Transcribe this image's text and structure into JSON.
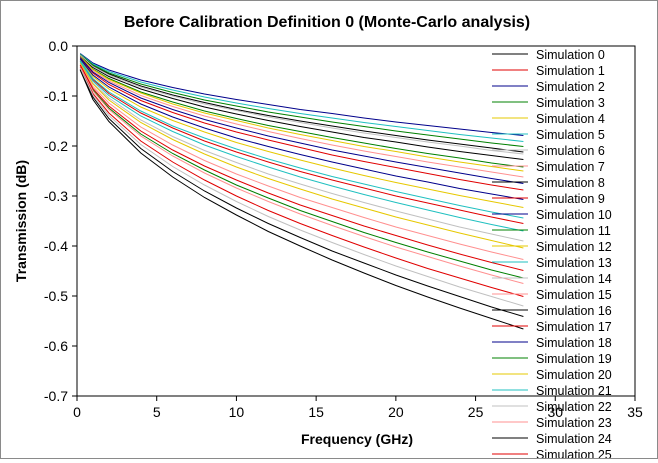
{
  "chart_data": {
    "type": "line",
    "title": "Before Calibration Definition 0 (Monte-Carlo analysis)",
    "xlabel": "Frequency (GHz)",
    "ylabel": "Transmission (dB)",
    "xlim": [
      0,
      35
    ],
    "ylim": [
      -0.7,
      0.0
    ],
    "x_ticks": [
      "0",
      "5",
      "10",
      "15",
      "20",
      "25",
      "30",
      "35"
    ],
    "y_ticks": [
      "0.0",
      "-0.1",
      "-0.2",
      "-0.3",
      "-0.4",
      "-0.5",
      "-0.6",
      "-0.7"
    ],
    "x": [
      0.2,
      1,
      2,
      4,
      6,
      8,
      10,
      12,
      14,
      16,
      18,
      20,
      22,
      24,
      26,
      28
    ],
    "grid": false,
    "legend_position": "right-inside",
    "series": [
      {
        "name": "Simulation 0",
        "color": "#000000",
        "values": [
          -0.018,
          -0.04,
          -0.056,
          -0.08,
          -0.098,
          -0.113,
          -0.127,
          -0.139,
          -0.15,
          -0.16,
          -0.17,
          -0.179,
          -0.188,
          -0.196,
          -0.204,
          -0.212
        ]
      },
      {
        "name": "Simulation 1",
        "color": "#e00000",
        "values": [
          -0.024,
          -0.054,
          -0.077,
          -0.109,
          -0.133,
          -0.154,
          -0.172,
          -0.188,
          -0.203,
          -0.218,
          -0.231,
          -0.243,
          -0.255,
          -0.267,
          -0.278,
          -0.288
        ]
      },
      {
        "name": "Simulation 2",
        "color": "#00008b",
        "values": [
          -0.015,
          -0.034,
          -0.048,
          -0.068,
          -0.083,
          -0.096,
          -0.107,
          -0.117,
          -0.127,
          -0.135,
          -0.144,
          -0.152,
          -0.159,
          -0.166,
          -0.173,
          -0.179
        ]
      },
      {
        "name": "Simulation 3",
        "color": "#008000",
        "values": [
          -0.02,
          -0.046,
          -0.065,
          -0.092,
          -0.112,
          -0.13,
          -0.145,
          -0.159,
          -0.171,
          -0.183,
          -0.194,
          -0.205,
          -0.215,
          -0.224,
          -0.234,
          -0.242
        ]
      },
      {
        "name": "Simulation 4",
        "color": "#e6c800",
        "values": [
          -0.027,
          -0.061,
          -0.086,
          -0.122,
          -0.149,
          -0.172,
          -0.193,
          -0.211,
          -0.228,
          -0.244,
          -0.259,
          -0.273,
          -0.286,
          -0.299,
          -0.311,
          -0.323
        ]
      },
      {
        "name": "Simulation 5",
        "color": "#20c0c0",
        "values": [
          -0.016,
          -0.036,
          -0.051,
          -0.072,
          -0.088,
          -0.102,
          -0.114,
          -0.125,
          -0.135,
          -0.144,
          -0.153,
          -0.161,
          -0.169,
          -0.177,
          -0.184,
          -0.191
        ]
      },
      {
        "name": "Simulation 6",
        "color": "#c0c0c0",
        "values": [
          -0.033,
          -0.074,
          -0.104,
          -0.148,
          -0.181,
          -0.209,
          -0.233,
          -0.256,
          -0.276,
          -0.295,
          -0.313,
          -0.33,
          -0.346,
          -0.362,
          -0.376,
          -0.39
        ]
      },
      {
        "name": "Simulation 7",
        "color": "#ff9090",
        "values": [
          -0.022,
          -0.049,
          -0.07,
          -0.099,
          -0.121,
          -0.14,
          -0.156,
          -0.171,
          -0.185,
          -0.198,
          -0.21,
          -0.221,
          -0.232,
          -0.242,
          -0.252,
          -0.262
        ]
      },
      {
        "name": "Simulation 8",
        "color": "#000000",
        "values": [
          -0.019,
          -0.043,
          -0.061,
          -0.086,
          -0.105,
          -0.122,
          -0.136,
          -0.149,
          -0.161,
          -0.172,
          -0.183,
          -0.192,
          -0.202,
          -0.211,
          -0.219,
          -0.227
        ]
      },
      {
        "name": "Simulation 9",
        "color": "#e00000",
        "values": [
          -0.03,
          -0.067,
          -0.095,
          -0.134,
          -0.164,
          -0.19,
          -0.212,
          -0.232,
          -0.251,
          -0.268,
          -0.284,
          -0.3,
          -0.314,
          -0.328,
          -0.342,
          -0.355
        ]
      },
      {
        "name": "Simulation 10",
        "color": "#00008b",
        "values": [
          -0.026,
          -0.058,
          -0.082,
          -0.116,
          -0.142,
          -0.164,
          -0.184,
          -0.201,
          -0.217,
          -0.232,
          -0.246,
          -0.26,
          -0.272,
          -0.285,
          -0.296,
          -0.307
        ]
      },
      {
        "name": "Simulation 11",
        "color": "#008000",
        "values": [
          -0.017,
          -0.038,
          -0.054,
          -0.076,
          -0.093,
          -0.108,
          -0.12,
          -0.132,
          -0.142,
          -0.152,
          -0.161,
          -0.17,
          -0.178,
          -0.186,
          -0.194,
          -0.201
        ]
      },
      {
        "name": "Simulation 12",
        "color": "#e6c800",
        "values": [
          -0.021,
          -0.047,
          -0.067,
          -0.094,
          -0.116,
          -0.134,
          -0.149,
          -0.164,
          -0.177,
          -0.189,
          -0.201,
          -0.211,
          -0.222,
          -0.232,
          -0.241,
          -0.25
        ]
      },
      {
        "name": "Simulation 13",
        "color": "#20c0c0",
        "values": [
          -0.029,
          -0.065,
          -0.092,
          -0.13,
          -0.16,
          -0.184,
          -0.206,
          -0.226,
          -0.244,
          -0.261,
          -0.276,
          -0.291,
          -0.305,
          -0.319,
          -0.332,
          -0.344
        ]
      },
      {
        "name": "Simulation 14",
        "color": "#c0c0c0",
        "values": [
          -0.018,
          -0.041,
          -0.058,
          -0.082,
          -0.1,
          -0.116,
          -0.129,
          -0.142,
          -0.153,
          -0.164,
          -0.174,
          -0.183,
          -0.192,
          -0.2,
          -0.209,
          -0.216
        ]
      },
      {
        "name": "Simulation 15",
        "color": "#ff9090",
        "values": [
          -0.036,
          -0.081,
          -0.114,
          -0.162,
          -0.198,
          -0.229,
          -0.256,
          -0.28,
          -0.303,
          -0.323,
          -0.343,
          -0.362,
          -0.379,
          -0.396,
          -0.412,
          -0.427
        ]
      },
      {
        "name": "Simulation 16",
        "color": "#000000",
        "values": [
          -0.046,
          -0.102,
          -0.145,
          -0.205,
          -0.251,
          -0.29,
          -0.324,
          -0.355,
          -0.383,
          -0.41,
          -0.434,
          -0.458,
          -0.48,
          -0.501,
          -0.522,
          -0.541
        ]
      },
      {
        "name": "Simulation 17",
        "color": "#e00000",
        "values": [
          -0.042,
          -0.095,
          -0.134,
          -0.19,
          -0.232,
          -0.268,
          -0.3,
          -0.329,
          -0.355,
          -0.379,
          -0.402,
          -0.424,
          -0.445,
          -0.464,
          -0.483,
          -0.501
        ]
      },
      {
        "name": "Simulation 18",
        "color": "#00008b",
        "values": [
          -0.023,
          -0.052,
          -0.073,
          -0.104,
          -0.127,
          -0.147,
          -0.164,
          -0.18,
          -0.194,
          -0.208,
          -0.22,
          -0.232,
          -0.243,
          -0.254,
          -0.265,
          -0.275
        ]
      },
      {
        "name": "Simulation 19",
        "color": "#008000",
        "values": [
          -0.039,
          -0.088,
          -0.124,
          -0.176,
          -0.215,
          -0.248,
          -0.278,
          -0.304,
          -0.329,
          -0.351,
          -0.373,
          -0.393,
          -0.412,
          -0.43,
          -0.448,
          -0.464
        ]
      },
      {
        "name": "Simulation 20",
        "color": "#e6c800",
        "values": [
          -0.034,
          -0.076,
          -0.108,
          -0.153,
          -0.187,
          -0.216,
          -0.242,
          -0.265,
          -0.286,
          -0.306,
          -0.324,
          -0.342,
          -0.358,
          -0.374,
          -0.389,
          -0.404
        ]
      },
      {
        "name": "Simulation 21",
        "color": "#20c0c0",
        "values": [
          -0.031,
          -0.07,
          -0.099,
          -0.14,
          -0.171,
          -0.198,
          -0.221,
          -0.242,
          -0.262,
          -0.28,
          -0.297,
          -0.313,
          -0.328,
          -0.343,
          -0.357,
          -0.37
        ]
      },
      {
        "name": "Simulation 22",
        "color": "#c0c0c0",
        "values": [
          -0.044,
          -0.098,
          -0.139,
          -0.197,
          -0.241,
          -0.278,
          -0.311,
          -0.341,
          -0.368,
          -0.393,
          -0.417,
          -0.44,
          -0.461,
          -0.482,
          -0.501,
          -0.52
        ]
      },
      {
        "name": "Simulation 23",
        "color": "#ff9090",
        "values": [
          -0.04,
          -0.09,
          -0.127,
          -0.18,
          -0.22,
          -0.254,
          -0.284,
          -0.311,
          -0.336,
          -0.359,
          -0.381,
          -0.402,
          -0.421,
          -0.44,
          -0.458,
          -0.475
        ]
      },
      {
        "name": "Simulation 24",
        "color": "#000000",
        "values": [
          -0.048,
          -0.107,
          -0.151,
          -0.214,
          -0.262,
          -0.303,
          -0.338,
          -0.371,
          -0.4,
          -0.428,
          -0.454,
          -0.479,
          -0.502,
          -0.524,
          -0.545,
          -0.566
        ]
      },
      {
        "name": "Simulation 25",
        "color": "#e00000",
        "values": [
          -0.038,
          -0.085,
          -0.12,
          -0.17,
          -0.208,
          -0.24,
          -0.268,
          -0.294,
          -0.318,
          -0.339,
          -0.36,
          -0.379,
          -0.398,
          -0.416,
          -0.433,
          -0.449
        ]
      }
    ]
  }
}
